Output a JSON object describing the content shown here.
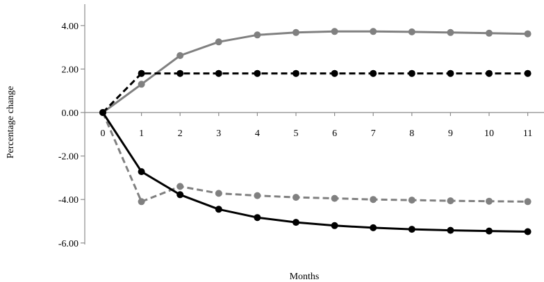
{
  "chart_data": {
    "type": "line",
    "title": "",
    "xlabel": "Months",
    "ylabel": "Percentage change",
    "x": [
      0,
      1,
      2,
      3,
      4,
      5,
      6,
      7,
      8,
      9,
      10,
      11
    ],
    "x_tick_labels": [
      "0",
      "1",
      "2",
      "3",
      "4",
      "5",
      "6",
      "7",
      "8",
      "9",
      "10",
      "11"
    ],
    "y_tick_labels": [
      "4.00",
      "2.00",
      "0.00",
      "-2.00",
      "-4.00",
      "-6.00"
    ],
    "ylim": [
      -6,
      4
    ],
    "grid": false,
    "legend": "none",
    "series": [
      {
        "style": "solid",
        "color": "#808080",
        "values": [
          0,
          1.3,
          2.62,
          3.25,
          3.57,
          3.68,
          3.73,
          3.73,
          3.71,
          3.68,
          3.65,
          3.62
        ]
      },
      {
        "style": "dashed",
        "color": "#000000",
        "values": [
          0,
          1.8,
          1.8,
          1.8,
          1.8,
          1.8,
          1.8,
          1.8,
          1.8,
          1.8,
          1.8,
          1.8
        ]
      },
      {
        "style": "dashed",
        "color": "#808080",
        "values": [
          0,
          -4.1,
          -3.4,
          -3.72,
          -3.82,
          -3.9,
          -3.95,
          -4.0,
          -4.03,
          -4.06,
          -4.08,
          -4.1
        ]
      },
      {
        "style": "solid",
        "color": "#000000",
        "values": [
          0,
          -2.72,
          -3.78,
          -4.45,
          -4.83,
          -5.05,
          -5.2,
          -5.3,
          -5.37,
          -5.42,
          -5.45,
          -5.48
        ]
      }
    ]
  }
}
